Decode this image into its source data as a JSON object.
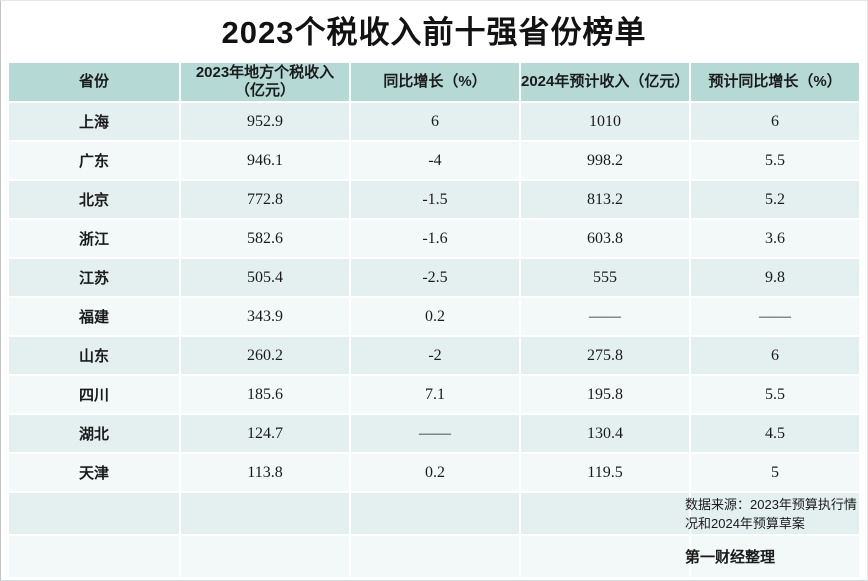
{
  "chart_data": {
    "type": "table",
    "title": "2023个税收入前十强省份榜单",
    "columns": [
      "省份",
      "2023年地方个税收入（亿元）",
      "同比增长（%）",
      "2024年预计收入（亿元）",
      "预计同比增长（%）"
    ],
    "rows": [
      {
        "province": "上海",
        "income_2023": "952.9",
        "yoy_growth": "6",
        "forecast_2024": "1010",
        "forecast_yoy": "6"
      },
      {
        "province": "广东",
        "income_2023": "946.1",
        "yoy_growth": "-4",
        "forecast_2024": "998.2",
        "forecast_yoy": "5.5"
      },
      {
        "province": "北京",
        "income_2023": "772.8",
        "yoy_growth": "-1.5",
        "forecast_2024": "813.2",
        "forecast_yoy": "5.2"
      },
      {
        "province": "浙江",
        "income_2023": "582.6",
        "yoy_growth": "-1.6",
        "forecast_2024": "603.8",
        "forecast_yoy": "3.6"
      },
      {
        "province": "江苏",
        "income_2023": "505.4",
        "yoy_growth": "-2.5",
        "forecast_2024": "555",
        "forecast_yoy": "9.8"
      },
      {
        "province": "福建",
        "income_2023": "343.9",
        "yoy_growth": "0.2",
        "forecast_2024": "——",
        "forecast_yoy": "——"
      },
      {
        "province": "山东",
        "income_2023": "260.2",
        "yoy_growth": "-2",
        "forecast_2024": "275.8",
        "forecast_yoy": "6"
      },
      {
        "province": "四川",
        "income_2023": "185.6",
        "yoy_growth": "7.1",
        "forecast_2024": "195.8",
        "forecast_yoy": "5.5"
      },
      {
        "province": "湖北",
        "income_2023": "124.7",
        "yoy_growth": "——",
        "forecast_2024": "130.4",
        "forecast_yoy": "4.5"
      },
      {
        "province": "天津",
        "income_2023": "113.8",
        "yoy_growth": "0.2",
        "forecast_2024": "119.5",
        "forecast_yoy": "5"
      }
    ],
    "source_note": "数据来源：2023年预算执行情况和2024年预算草案",
    "credit": "第一财经整理"
  },
  "colors": {
    "header_bg": "#b5dad6",
    "row_shade_a": "#e4f0ef",
    "row_shade_b": "#f3f9f9",
    "text": "#1b1b1b"
  }
}
